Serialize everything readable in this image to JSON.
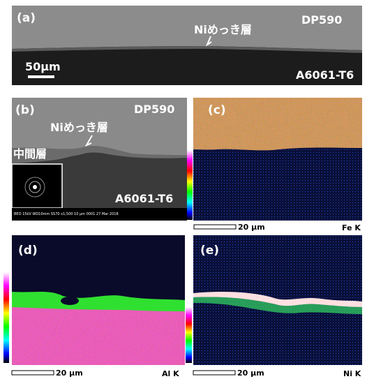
{
  "panel_a": {
    "tag": "(a)",
    "steel": "DP590",
    "plating": "Niめっき層",
    "scale": "50μm",
    "alloy": "A6061-T6"
  },
  "panel_b": {
    "tag": "(b)",
    "steel": "DP590",
    "plating": "Niめっき層",
    "interlayer": "中間層",
    "alloy": "A6061-T6",
    "footer": "BEO 15kV WD10mm SS70 x1,500 10 μm 0001 27 Mar 2018"
  },
  "panel_c": {
    "tag": "(c)",
    "scale": "20 μm",
    "element": "Fe K"
  },
  "panel_d": {
    "tag": "(d)",
    "scale": "20 μm",
    "element": "Al K"
  },
  "panel_e": {
    "tag": "(e)",
    "scale": "20 μm",
    "element": "Ni K"
  }
}
